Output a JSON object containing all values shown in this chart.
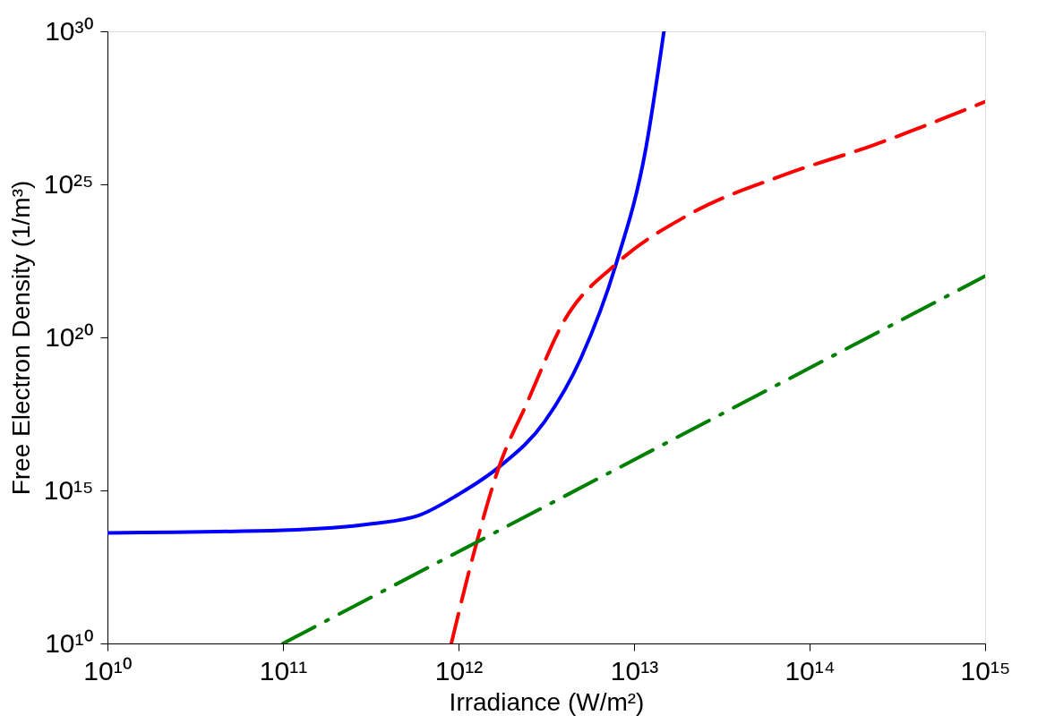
{
  "chart_data": {
    "type": "line",
    "xlabel": "Irradiance (W/m²)",
    "ylabel": "Free Electron Density (1/m³)",
    "log": "xy",
    "grid": false,
    "marker": "none",
    "xlim": [
      10000000000.0,
      1000000000000000.0
    ],
    "ylim": [
      10000000000.0,
      1e+30
    ],
    "xticks": [
      {
        "value": 10000000000.0,
        "label": "10¹⁰"
      },
      {
        "value": 100000000000.0,
        "label": "10¹¹"
      },
      {
        "value": 1000000000000.0,
        "label": "10¹²"
      },
      {
        "value": 10000000000000.0,
        "label": "10¹³"
      },
      {
        "value": 100000000000000.0,
        "label": "10¹⁴"
      },
      {
        "value": 1000000000000000.0,
        "label": "10¹⁵"
      }
    ],
    "yticks": [
      {
        "value": 10000000000.0,
        "label": "10¹⁰"
      },
      {
        "value": 1000000000000000.0,
        "label": "10¹⁵"
      },
      {
        "value": 1e+20,
        "label": "10²⁰"
      },
      {
        "value": 1e+25,
        "label": "10²⁵"
      },
      {
        "value": 1e+30,
        "label": "10³⁰"
      }
    ],
    "series": [
      {
        "color": "#0000ff",
        "line_style": "solid",
        "x": [
          10000000000.0,
          100000000000.0,
          320000000000.0,
          590000000000.0,
          1000000000000.0,
          1700000000000.0,
          3100000000000.0,
          5000000000000.0,
          7900000000000.0,
          11700000000000.0,
          14800000000000.0
        ],
        "values": [
          41000000000000.0,
          50000000000000.0,
          81000000000000.0,
          150000000000000.0,
          740000000000000.0,
          5800000000000000.0,
          1.8e+17,
          2.2e+19,
          2.5e+22,
          1.6e+26,
          1e+30
        ]
      },
      {
        "color": "#ff0000",
        "line_style": "dashed",
        "x": [
          910000000000.0,
          1200000000000.0,
          1700000000000.0,
          2450000000000.0,
          4000000000000.0,
          7900000000000.0,
          21000000000000.0,
          71000000000000.0,
          230000000000000.0,
          1000000000000000.0
        ],
        "values": [
          10000000000.0,
          6000000000000.0,
          5800000000000000.0,
          7e+17,
          3.5e+20,
          2.5e+22,
          1.1e+24,
          2e+25,
          1.9e+26,
          5e+27
        ]
      },
      {
        "color": "#008000",
        "line_style": "dashdot",
        "x": [
          100000000000.0,
          1000000000000000.0
        ],
        "values": [
          10000000000.0,
          1e+22
        ]
      }
    ]
  }
}
